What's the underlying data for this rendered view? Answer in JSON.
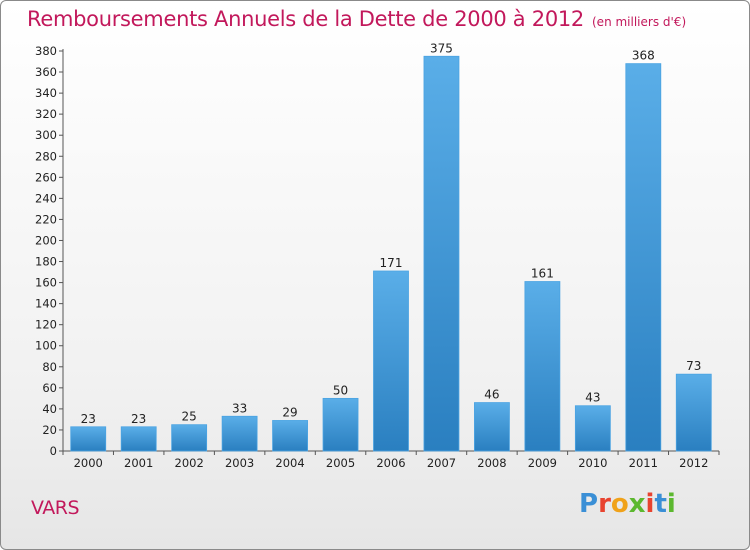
{
  "header": {
    "title": "Remboursements Annuels de la Dette de 2000 à 2012",
    "unit": "(en milliers d'€)"
  },
  "footer": {
    "commune": "VARS",
    "logo": "Proxiti"
  },
  "colors": {
    "title": "#c2185b",
    "bar_top": "#5aaee8",
    "bar_bottom": "#2a7fc0",
    "logo_letters": [
      "#3a8fd6",
      "#e8432f",
      "#f0a21a",
      "#5cb82f",
      "#e8432f",
      "#3a8fd6",
      "#5cb82f"
    ]
  },
  "chart_data": {
    "type": "bar",
    "categories": [
      "2000",
      "2001",
      "2002",
      "2003",
      "2004",
      "2005",
      "2006",
      "2007",
      "2008",
      "2009",
      "2010",
      "2011",
      "2012"
    ],
    "values": [
      23,
      23,
      25,
      33,
      29,
      50,
      171,
      375,
      46,
      161,
      43,
      368,
      73
    ],
    "title": "Remboursements Annuels de la Dette de 2000 à 2012",
    "xlabel": "",
    "ylabel": "",
    "ylim": [
      0,
      380
    ],
    "ytick_step": 20,
    "grid": false,
    "legend": "none"
  }
}
